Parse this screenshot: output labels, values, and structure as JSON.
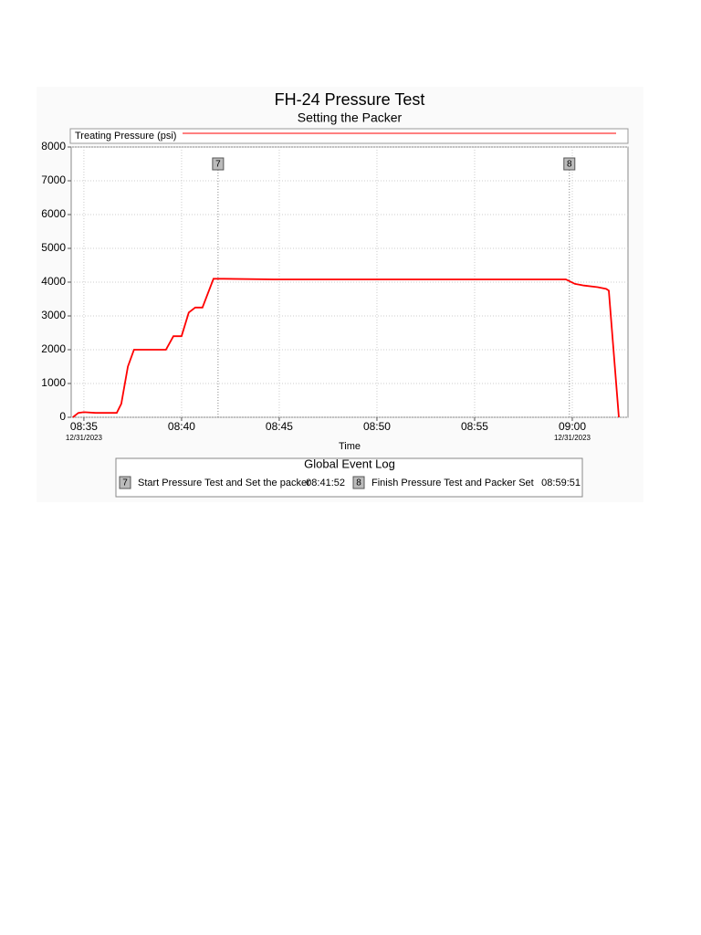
{
  "chart_data": {
    "type": "line",
    "title": "FH-24 Pressure Test",
    "subtitle": "Setting the Packer",
    "x_label": "Time",
    "series": [
      {
        "name": "Treating Pressure (psi)",
        "color": "#ff0000",
        "x": [
          "08:34:26",
          "08:34:43",
          "08:35:00",
          "08:35:36",
          "08:36:41",
          "08:36:55",
          "08:37:15",
          "08:37:34",
          "08:39:12",
          "08:39:35",
          "08:40:00",
          "08:40:22",
          "08:40:42",
          "08:41:04",
          "08:41:38",
          "08:42:09",
          "08:44:43",
          "08:59:40",
          "09:00:08",
          "09:00:36",
          "09:01:18",
          "09:01:44",
          "09:01:52",
          "09:02:23"
        ],
        "values": [
          0,
          130,
          150,
          130,
          130,
          400,
          1500,
          2000,
          2000,
          2400,
          2400,
          3100,
          3250,
          3250,
          4100,
          4100,
          4080,
          4080,
          3950,
          3900,
          3850,
          3800,
          3750,
          0
        ]
      }
    ],
    "xlim": [
      "08:34:21",
      "09:02:51"
    ],
    "xticks": [
      "08:35",
      "08:40",
      "08:45",
      "08:50",
      "08:55",
      "09:00"
    ],
    "xtick_sublabels": [
      "12/31/2023",
      null,
      null,
      null,
      null,
      "12/31/2023"
    ],
    "ylim": [
      0,
      8000
    ],
    "yticks": [
      0,
      1000,
      2000,
      3000,
      4000,
      5000,
      6000,
      7000,
      8000
    ],
    "grid": true,
    "event_log": {
      "title": "Global Event Log",
      "events": [
        {
          "id": "7",
          "label": "Start Pressure Test and Set the packer",
          "time": "08:41:52"
        },
        {
          "id": "8",
          "label": "Finish Pressure Test and Packer Set",
          "time": "08:59:51"
        }
      ]
    }
  }
}
